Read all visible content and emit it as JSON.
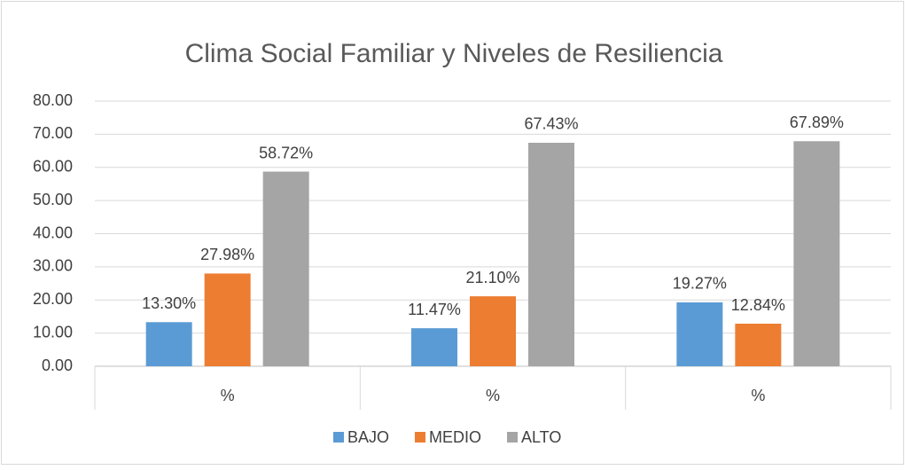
{
  "chart_data": {
    "type": "bar",
    "title": "Clima Social Familiar y Niveles de Resiliencia",
    "categories": [
      "%",
      "%",
      "%"
    ],
    "series": [
      {
        "name": "BAJO",
        "color": "#5b9bd5",
        "values": [
          13.3,
          11.47,
          19.27
        ],
        "value_labels": [
          "13.30%",
          "11.47%",
          "19.27%"
        ]
      },
      {
        "name": "MEDIO",
        "color": "#ed7d31",
        "values": [
          27.98,
          21.1,
          12.84
        ],
        "value_labels": [
          "27.98%",
          "21.10%",
          "12.84%"
        ]
      },
      {
        "name": "ALTO",
        "color": "#a5a5a5",
        "values": [
          58.72,
          67.43,
          67.89
        ],
        "value_labels": [
          "58.72%",
          "67.43%",
          "67.89%"
        ]
      }
    ],
    "ylim": [
      0,
      80
    ],
    "yticks": [
      {
        "value": 0,
        "label": "0.00"
      },
      {
        "value": 10,
        "label": "10.00"
      },
      {
        "value": 20,
        "label": "20.00"
      },
      {
        "value": 30,
        "label": "30.00"
      },
      {
        "value": 40,
        "label": "40.00"
      },
      {
        "value": 50,
        "label": "50.00"
      },
      {
        "value": 60,
        "label": "60.00"
      },
      {
        "value": 70,
        "label": "70.00"
      },
      {
        "value": 80,
        "label": "80.00"
      }
    ],
    "grid": true,
    "legend": "bottom"
  }
}
